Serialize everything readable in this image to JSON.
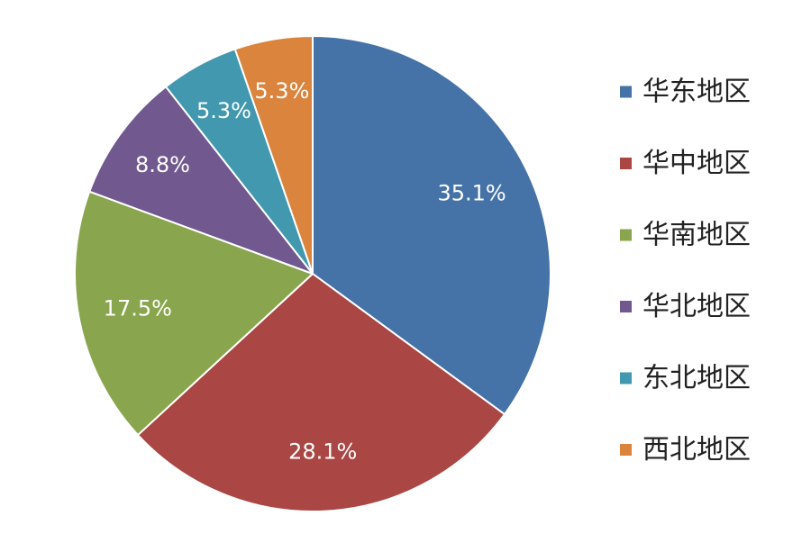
{
  "chart_data": {
    "type": "pie",
    "categories": [
      "华东地区",
      "华中地区",
      "华南地区",
      "华北地区",
      "东北地区",
      "西北地区"
    ],
    "values": [
      35.1,
      28.1,
      17.5,
      8.8,
      5.3,
      5.3
    ],
    "labels": [
      "35.1%",
      "28.1%",
      "17.5%",
      "8.8%",
      "5.3%",
      "5.3%"
    ],
    "colors": [
      "#4572a7",
      "#aa4643",
      "#89a54e",
      "#71588f",
      "#4198af",
      "#db843d"
    ],
    "start_angle": "12 o'clock",
    "direction": "clockwise",
    "legend_position": "right"
  }
}
